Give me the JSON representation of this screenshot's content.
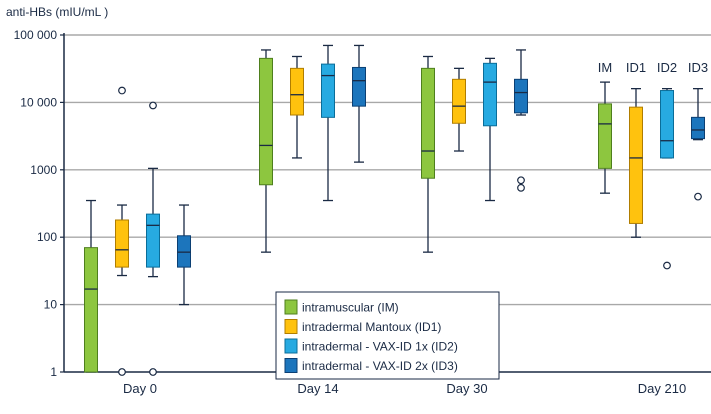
{
  "chart_data": {
    "type": "box",
    "ylabel": "anti-HBs (mIU/mL )",
    "yscale": "log",
    "ylim": [
      1,
      100000
    ],
    "grid": true,
    "yticks": [
      {
        "value": 1,
        "label": "1"
      },
      {
        "value": 10,
        "label": "10"
      },
      {
        "value": 100,
        "label": "100"
      },
      {
        "value": 1000,
        "label": "1000"
      },
      {
        "value": 10000,
        "label": "10 000"
      },
      {
        "value": 100000,
        "label": "100 000"
      }
    ],
    "categories": [
      "Day 0",
      "Day 14",
      "Day 30",
      "Day 210"
    ],
    "group_labels": [
      "IM",
      "ID1",
      "ID2",
      "ID3"
    ],
    "legend_position": "bottom-center",
    "series": [
      {
        "name": "intramuscular (IM)",
        "color": "#8dc63f",
        "edge": "#4e7f1d",
        "boxes": [
          {
            "min": 1,
            "q1": 1,
            "median": 17,
            "q3": 70,
            "max": 350,
            "outliers": []
          },
          {
            "min": 60,
            "q1": 600,
            "median": 2300,
            "q3": 45000,
            "max": 60000,
            "outliers": []
          },
          {
            "min": 60,
            "q1": 750,
            "median": 1900,
            "q3": 32000,
            "max": 48000,
            "outliers": []
          },
          {
            "min": 450,
            "q1": 1050,
            "median": 4800,
            "q3": 9500,
            "max": 20000,
            "outliers": []
          }
        ]
      },
      {
        "name": "intradermal Mantoux (ID1)",
        "color": "#ffc20e",
        "edge": "#b07d00",
        "boxes": [
          {
            "min": 27,
            "q1": 36,
            "median": 65,
            "q3": 180,
            "max": 300,
            "outliers": [
              15000,
              1
            ]
          },
          {
            "min": 1500,
            "q1": 6500,
            "median": 13000,
            "q3": 32000,
            "max": 48000,
            "outliers": []
          },
          {
            "min": 1900,
            "q1": 4900,
            "median": 8800,
            "q3": 22000,
            "max": 32000,
            "outliers": []
          },
          {
            "min": 100,
            "q1": 160,
            "median": 1500,
            "q3": 8500,
            "max": 16000,
            "outliers": []
          }
        ]
      },
      {
        "name": "intradermal - VAX-ID 1x (ID2)",
        "color": "#27aae1",
        "edge": "#0a6d99",
        "boxes": [
          {
            "min": 26,
            "q1": 36,
            "median": 150,
            "q3": 220,
            "max": 1050,
            "outliers": [
              9000,
              1
            ]
          },
          {
            "min": 350,
            "q1": 6000,
            "median": 25000,
            "q3": 37000,
            "max": 70000,
            "outliers": []
          },
          {
            "min": 350,
            "q1": 4500,
            "median": 20000,
            "q3": 38000,
            "max": 45000,
            "outliers": []
          },
          {
            "min": 1500,
            "q1": 1500,
            "median": 2700,
            "q3": 15000,
            "max": 16000,
            "outliers": [
              38
            ]
          }
        ]
      },
      {
        "name": "intradermal - VAX-ID 2x (ID3)",
        "color": "#1c75bc",
        "edge": "#0b3f73",
        "boxes": [
          {
            "min": 10,
            "q1": 36,
            "median": 60,
            "q3": 105,
            "max": 300,
            "outliers": []
          },
          {
            "min": 1300,
            "q1": 8800,
            "median": 21000,
            "q3": 33000,
            "max": 70000,
            "outliers": []
          },
          {
            "min": 6500,
            "q1": 7000,
            "median": 14000,
            "q3": 22000,
            "max": 60000,
            "outliers": [
              700,
              540
            ]
          },
          {
            "min": 2800,
            "q1": 2900,
            "median": 3900,
            "q3": 6000,
            "max": 16000,
            "outliers": [
              400
            ]
          }
        ]
      }
    ]
  }
}
